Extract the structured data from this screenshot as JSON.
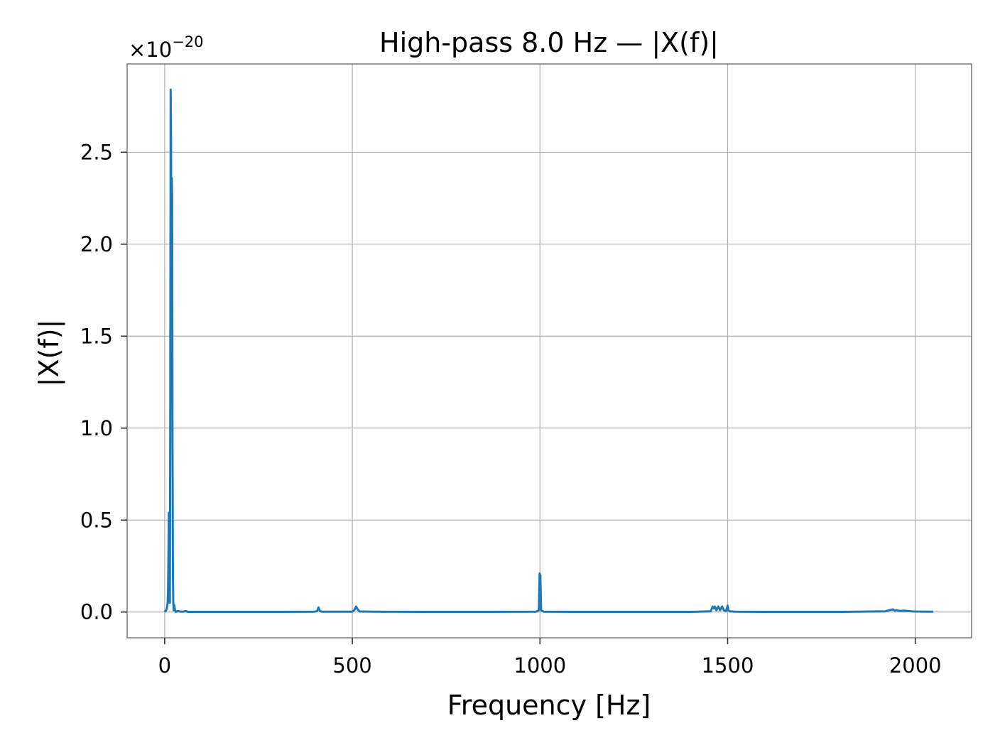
{
  "chart_data": {
    "type": "line",
    "title": "High-pass 8.0 Hz — |X(f)|",
    "xlabel": "Frequency [Hz]",
    "ylabel": "|X(f)|",
    "y_offset_label": "×10",
    "y_offset_exponent": "−20",
    "xlim": [
      -100,
      2150
    ],
    "ylim": [
      -0.14,
      2.98
    ],
    "xticks": [
      0,
      500,
      1000,
      1500,
      2000
    ],
    "xtick_labels": [
      "0",
      "500",
      "1000",
      "1500",
      "2000"
    ],
    "yticks": [
      0.0,
      0.5,
      1.0,
      1.5,
      2.0,
      2.5
    ],
    "ytick_labels": [
      "0.0",
      "0.5",
      "1.0",
      "1.5",
      "2.0",
      "2.5"
    ],
    "grid": true,
    "series": [
      {
        "color": "#1f77b4",
        "x": [
          0,
          4,
          6,
          8,
          9,
          10,
          11,
          12,
          13,
          14,
          15,
          16,
          17,
          18,
          19,
          20,
          21,
          22,
          23,
          24,
          25,
          26,
          28,
          30,
          35,
          40,
          50,
          57,
          60,
          63,
          80,
          120,
          200,
          300,
          400,
          406,
          410,
          414,
          420,
          450,
          500,
          505,
          510,
          515,
          520,
          560,
          700,
          850,
          990,
          997,
          999,
          1000,
          1001,
          1003,
          1010,
          1100,
          1250,
          1400,
          1455,
          1460,
          1463,
          1466,
          1470,
          1475,
          1480,
          1485,
          1490,
          1495,
          1498,
          1500,
          1502,
          1505,
          1520,
          1600,
          1800,
          1920,
          1935,
          1940,
          1945,
          1950,
          1960,
          1970,
          1980,
          1990,
          2000,
          2048
        ],
        "y": [
          0.0,
          0.01,
          0.02,
          0.05,
          0.12,
          0.28,
          0.54,
          0.3,
          0.1,
          0.05,
          1.2,
          2.84,
          2.6,
          1.7,
          2.36,
          2.26,
          0.9,
          0.2,
          0.05,
          0.01,
          0.04,
          0.03,
          0.01,
          0.0,
          0.005,
          0.003,
          0.002,
          0.006,
          0.002,
          0.001,
          0.001,
          0.001,
          0.001,
          0.001,
          0.002,
          0.005,
          0.025,
          0.005,
          0.002,
          0.002,
          0.002,
          0.01,
          0.03,
          0.012,
          0.003,
          0.002,
          0.001,
          0.001,
          0.002,
          0.01,
          0.21,
          0.2,
          0.2,
          0.01,
          0.002,
          0.001,
          0.001,
          0.001,
          0.004,
          0.03,
          0.02,
          0.03,
          0.01,
          0.03,
          0.01,
          0.03,
          0.01,
          0.005,
          0.02,
          0.035,
          0.01,
          0.004,
          0.002,
          0.001,
          0.001,
          0.004,
          0.012,
          0.015,
          0.008,
          0.01,
          0.006,
          0.008,
          0.006,
          0.004,
          0.003,
          0.002
        ]
      }
    ]
  }
}
